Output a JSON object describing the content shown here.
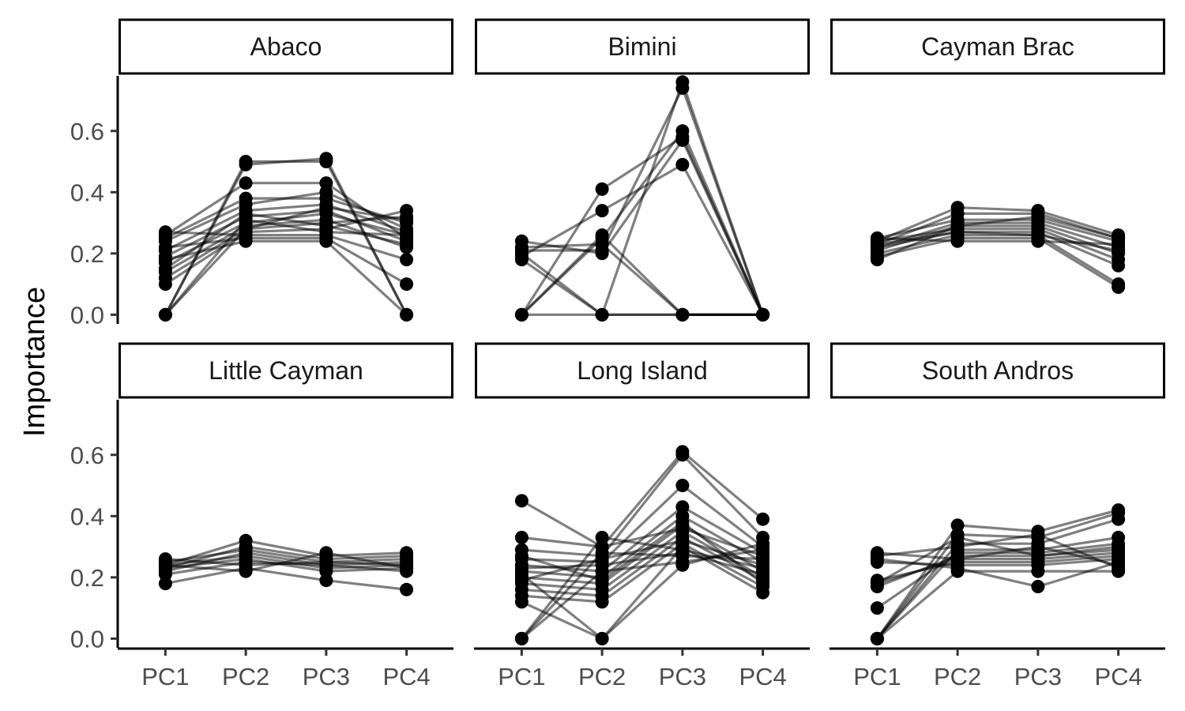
{
  "chart_data": {
    "type": "line",
    "layout": "facet-grid",
    "ylabel": "Importance",
    "xlabel": "",
    "categories": [
      "PC1",
      "PC2",
      "PC3",
      "PC4"
    ],
    "ylim": [
      -0.03,
      0.78
    ],
    "y_ticks": [
      0.0,
      0.2,
      0.4,
      0.6
    ],
    "y_tick_labels": [
      "0.0",
      "0.2",
      "0.4",
      "0.6"
    ],
    "grid": false,
    "line_color": "#000000",
    "point_color": "#000000",
    "line_opacity": 0.5,
    "facets": [
      {
        "title": "Abaco",
        "lines": [
          [
            0.0,
            0.5,
            0.5,
            0.0
          ],
          [
            0.0,
            0.49,
            0.51,
            0.0
          ],
          [
            0.26,
            0.43,
            0.43,
            0.25
          ],
          [
            0.25,
            0.38,
            0.38,
            0.3
          ],
          [
            0.24,
            0.36,
            0.4,
            0.28
          ],
          [
            0.21,
            0.34,
            0.36,
            0.27
          ],
          [
            0.19,
            0.32,
            0.34,
            0.24
          ],
          [
            0.17,
            0.3,
            0.33,
            0.26
          ],
          [
            0.14,
            0.29,
            0.31,
            0.22
          ],
          [
            0.12,
            0.28,
            0.3,
            0.32
          ],
          [
            0.1,
            0.27,
            0.28,
            0.34
          ],
          [
            0.27,
            0.26,
            0.26,
            0.18
          ],
          [
            0.22,
            0.25,
            0.25,
            0.1
          ],
          [
            0.0,
            0.28,
            0.35,
            0.31
          ],
          [
            0.0,
            0.31,
            0.27,
            0.26
          ],
          [
            0.18,
            0.24,
            0.24,
            0.0
          ],
          [
            0.15,
            0.33,
            0.29,
            0.23
          ]
        ]
      },
      {
        "title": "Bimini",
        "lines": [
          [
            0.2,
            0.0,
            0.76,
            0.0
          ],
          [
            0.21,
            0.21,
            0.74,
            0.0
          ],
          [
            0.0,
            0.25,
            0.6,
            0.0
          ],
          [
            0.0,
            0.41,
            0.58,
            0.0
          ],
          [
            0.19,
            0.34,
            0.49,
            0.0
          ],
          [
            0.24,
            0.2,
            0.57,
            0.0
          ],
          [
            0.18,
            0.0,
            0.0,
            0.0
          ],
          [
            0.22,
            0.23,
            0.0,
            0.0
          ],
          [
            0.0,
            0.26,
            0.0,
            0.0
          ],
          [
            0.0,
            0.0,
            0.0,
            0.0
          ]
        ]
      },
      {
        "title": "Cayman Brac",
        "lines": [
          [
            0.24,
            0.35,
            0.34,
            0.26
          ],
          [
            0.23,
            0.33,
            0.33,
            0.25
          ],
          [
            0.25,
            0.31,
            0.31,
            0.24
          ],
          [
            0.22,
            0.3,
            0.3,
            0.22
          ],
          [
            0.21,
            0.29,
            0.29,
            0.2
          ],
          [
            0.24,
            0.28,
            0.28,
            0.18
          ],
          [
            0.23,
            0.27,
            0.27,
            0.16
          ],
          [
            0.2,
            0.26,
            0.26,
            0.1
          ],
          [
            0.19,
            0.25,
            0.25,
            0.09
          ],
          [
            0.25,
            0.24,
            0.24,
            0.23
          ],
          [
            0.22,
            0.27,
            0.26,
            0.21
          ],
          [
            0.18,
            0.29,
            0.32,
            0.25
          ]
        ]
      },
      {
        "title": "Little Cayman",
        "lines": [
          [
            0.24,
            0.32,
            0.27,
            0.28
          ],
          [
            0.23,
            0.3,
            0.26,
            0.27
          ],
          [
            0.25,
            0.29,
            0.25,
            0.26
          ],
          [
            0.22,
            0.28,
            0.24,
            0.25
          ],
          [
            0.24,
            0.27,
            0.23,
            0.24
          ],
          [
            0.23,
            0.26,
            0.22,
            0.23
          ],
          [
            0.21,
            0.25,
            0.24,
            0.22
          ],
          [
            0.26,
            0.24,
            0.25,
            0.24
          ],
          [
            0.18,
            0.23,
            0.19,
            0.16
          ],
          [
            0.24,
            0.22,
            0.28,
            0.23
          ]
        ]
      },
      {
        "title": "Long Island",
        "lines": [
          [
            0.45,
            0.3,
            0.36,
            0.27
          ],
          [
            0.33,
            0.3,
            0.61,
            0.39
          ],
          [
            0.29,
            0.27,
            0.6,
            0.33
          ],
          [
            0.26,
            0.25,
            0.5,
            0.3
          ],
          [
            0.24,
            0.22,
            0.43,
            0.28
          ],
          [
            0.22,
            0.2,
            0.4,
            0.25
          ],
          [
            0.2,
            0.18,
            0.37,
            0.22
          ],
          [
            0.18,
            0.16,
            0.35,
            0.2
          ],
          [
            0.16,
            0.14,
            0.33,
            0.19
          ],
          [
            0.14,
            0.12,
            0.31,
            0.17
          ],
          [
            0.12,
            0.0,
            0.3,
            0.15
          ],
          [
            0.0,
            0.33,
            0.29,
            0.23
          ],
          [
            0.0,
            0.28,
            0.27,
            0.26
          ],
          [
            0.0,
            0.22,
            0.25,
            0.29
          ],
          [
            0.21,
            0.0,
            0.24,
            0.31
          ],
          [
            0.23,
            0.24,
            0.28,
            0.21
          ],
          [
            0.19,
            0.26,
            0.32,
            0.24
          ],
          [
            0.27,
            0.19,
            0.38,
            0.18
          ]
        ]
      },
      {
        "title": "South Andros",
        "lines": [
          [
            0.0,
            0.37,
            0.35,
            0.42
          ],
          [
            0.0,
            0.34,
            0.33,
            0.41
          ],
          [
            0.0,
            0.31,
            0.31,
            0.39
          ],
          [
            0.0,
            0.29,
            0.29,
            0.33
          ],
          [
            0.1,
            0.28,
            0.28,
            0.31
          ],
          [
            0.17,
            0.27,
            0.27,
            0.3
          ],
          [
            0.18,
            0.26,
            0.26,
            0.28
          ],
          [
            0.19,
            0.25,
            0.25,
            0.27
          ],
          [
            0.25,
            0.24,
            0.24,
            0.26
          ],
          [
            0.26,
            0.23,
            0.17,
            0.25
          ],
          [
            0.28,
            0.26,
            0.3,
            0.24
          ],
          [
            0.27,
            0.3,
            0.34,
            0.23
          ],
          [
            0.0,
            0.22,
            0.22,
            0.22
          ],
          [
            0.18,
            0.33,
            0.27,
            0.29
          ]
        ]
      }
    ]
  }
}
